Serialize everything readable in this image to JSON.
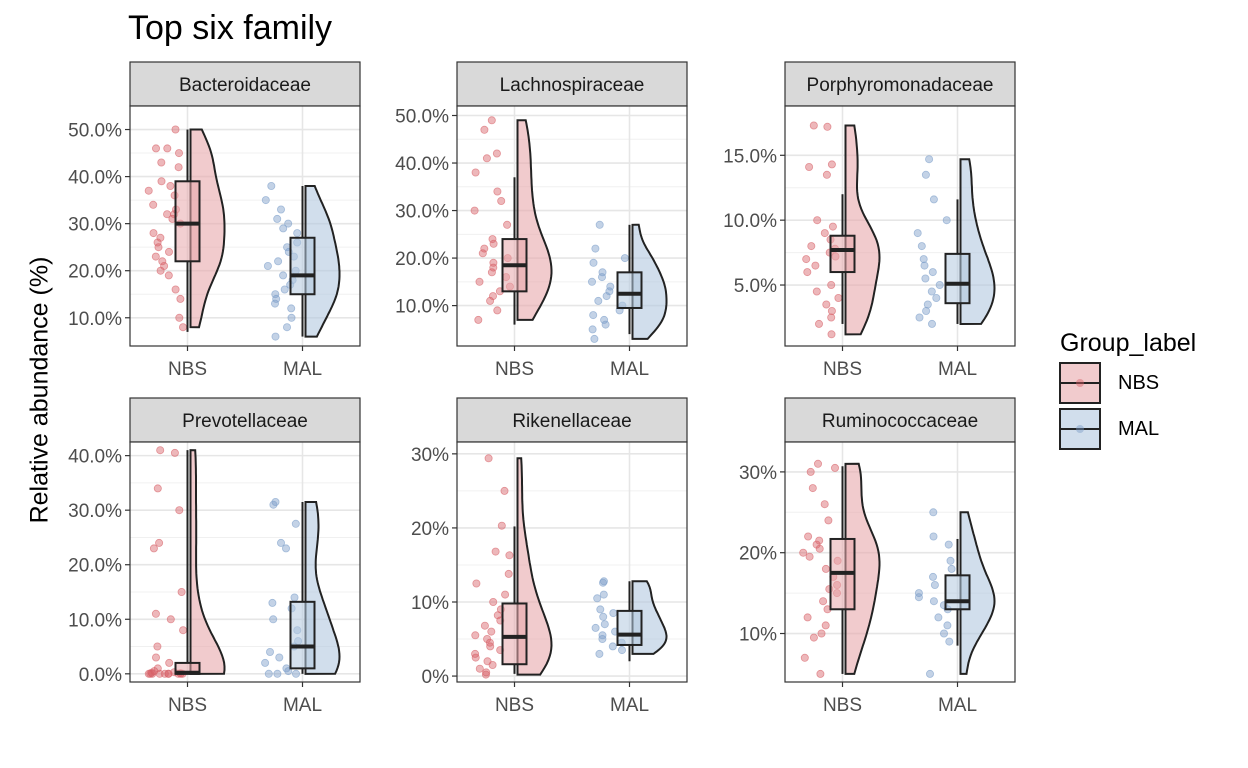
{
  "title": "Top six family",
  "ylabel": "Relative abundance (%)",
  "legend": {
    "title": "Group_label",
    "items": [
      {
        "label": "NBS",
        "fill": "#F2C6C8",
        "stroke": "#C0303A"
      },
      {
        "label": "MAL",
        "fill": "#C9D8E8",
        "stroke": "#3E6FA8"
      }
    ]
  },
  "colors": {
    "NBS_point": "#D65F66",
    "MAL_point": "#7A9CC8",
    "NBS_fill": "#E8A8AB",
    "MAL_fill": "#B3C8DF"
  },
  "chart_data": [
    {
      "type": "raincloud",
      "panel": "Bacteroidaceae",
      "categories": [
        "NBS",
        "MAL"
      ],
      "ylim": [
        4,
        55
      ],
      "yticks": [
        10,
        20,
        30,
        40,
        50
      ],
      "ytick_labels": [
        "10.0%",
        "20.0%",
        "30.0%",
        "40.0%",
        "50.0%"
      ],
      "series": [
        {
          "name": "NBS",
          "box": {
            "min": 7,
            "q1": 22,
            "median": 30,
            "q3": 39,
            "max": 50
          },
          "points": [
            46,
            46,
            45,
            50,
            43,
            42,
            38,
            39,
            37,
            36,
            34,
            33,
            32,
            32,
            31,
            30,
            28,
            27,
            26,
            25,
            24,
            23,
            22,
            21,
            20,
            19,
            16,
            14,
            10,
            8
          ]
        },
        {
          "name": "MAL",
          "box": {
            "min": 6,
            "q1": 15,
            "median": 19,
            "q3": 27,
            "max": 38
          },
          "points": [
            38,
            35,
            33,
            31,
            30,
            29,
            28,
            26,
            25,
            24,
            23,
            22,
            21,
            20,
            19,
            18,
            17,
            16,
            15,
            14,
            13,
            12,
            10,
            8,
            6
          ]
        }
      ]
    },
    {
      "type": "raincloud",
      "panel": "Lachnospiraceae",
      "categories": [
        "NBS",
        "MAL"
      ],
      "ylim": [
        1.5,
        52
      ],
      "yticks": [
        10,
        20,
        30,
        40,
        50
      ],
      "ytick_labels": [
        "10.0%",
        "20.0%",
        "30.0%",
        "40.0%",
        "50.0%"
      ],
      "series": [
        {
          "name": "NBS",
          "box": {
            "min": 6,
            "q1": 13,
            "median": 18.5,
            "q3": 24,
            "max": 37
          },
          "points": [
            47,
            42,
            41,
            49,
            38,
            34,
            32,
            30,
            27,
            24,
            23,
            22,
            21,
            20,
            19,
            18,
            17,
            16,
            15,
            14,
            13,
            12,
            11,
            9,
            7
          ]
        },
        {
          "name": "MAL",
          "box": {
            "min": 4,
            "q1": 9.5,
            "median": 12.5,
            "q3": 17,
            "max": 27
          },
          "points": [
            27,
            22,
            20,
            19,
            17,
            16,
            15,
            14,
            13,
            12,
            11,
            10,
            9,
            8,
            7,
            6,
            5,
            3
          ]
        }
      ]
    },
    {
      "type": "raincloud",
      "panel": "Porphyromonadaceae",
      "categories": [
        "NBS",
        "MAL"
      ],
      "ylim": [
        0.3,
        18.8
      ],
      "yticks": [
        5,
        10,
        15
      ],
      "ytick_labels": [
        "5.0%",
        "10.0%",
        "15.0%"
      ],
      "series": [
        {
          "name": "NBS",
          "box": {
            "min": 2,
            "q1": 6,
            "median": 7.7,
            "q3": 8.8,
            "max": 12
          },
          "points": [
            17.3,
            17.2,
            14.3,
            14.1,
            13.5,
            10,
            9.5,
            9,
            8.5,
            8,
            7.8,
            7.5,
            7.2,
            7,
            6.5,
            6,
            5,
            4.5,
            4,
            3.5,
            3,
            2.5,
            2,
            1.2
          ]
        },
        {
          "name": "MAL",
          "box": {
            "min": 2,
            "q1": 3.6,
            "median": 5.1,
            "q3": 7.4,
            "max": 11.6
          },
          "points": [
            14.7,
            13.5,
            11.6,
            10,
            9,
            8,
            7,
            6.5,
            6,
            5.5,
            5,
            4.5,
            4,
            3.5,
            3,
            2.5,
            2
          ]
        }
      ]
    },
    {
      "type": "raincloud",
      "panel": "Prevotellaceae",
      "categories": [
        "NBS",
        "MAL"
      ],
      "ylim": [
        -1.5,
        42.5
      ],
      "yticks": [
        0,
        10,
        20,
        30,
        40
      ],
      "ytick_labels": [
        "0.0%",
        "10.0%",
        "20.0%",
        "30.0%",
        "40.0%"
      ],
      "series": [
        {
          "name": "NBS",
          "box": {
            "min": 0,
            "q1": 0,
            "median": 0.2,
            "q3": 2,
            "max": 41
          },
          "points": [
            41,
            40.5,
            34,
            30,
            24,
            23,
            15,
            11,
            10,
            8,
            5,
            3,
            2,
            1,
            0.5,
            0.3,
            0.2,
            0.1,
            0,
            0,
            0,
            0,
            0,
            0,
            0,
            0,
            0,
            0
          ]
        },
        {
          "name": "MAL",
          "box": {
            "min": 0,
            "q1": 1,
            "median": 5,
            "q3": 13.2,
            "max": 31.5
          },
          "points": [
            31.5,
            31,
            27.5,
            24,
            23,
            14,
            13,
            12,
            10,
            8,
            6,
            5,
            4,
            3,
            2,
            1,
            0.5,
            0,
            0,
            0
          ]
        }
      ]
    },
    {
      "type": "raincloud",
      "panel": "Rikenellaceae",
      "categories": [
        "NBS",
        "MAL"
      ],
      "ylim": [
        -0.8,
        31.6
      ],
      "yticks": [
        0,
        10,
        20,
        30
      ],
      "ytick_labels": [
        "0%",
        "10%",
        "20%",
        "30%"
      ],
      "series": [
        {
          "name": "NBS",
          "box": {
            "min": 0.3,
            "q1": 1.6,
            "median": 5.3,
            "q3": 9.8,
            "max": 20.2
          },
          "points": [
            29.4,
            25,
            20.3,
            16.8,
            16.3,
            13.8,
            12.5,
            11,
            10,
            9,
            8.2,
            7.5,
            6.8,
            6,
            5.5,
            5,
            4.5,
            4,
            3.5,
            3,
            2.5,
            2,
            1.5,
            1,
            0.5,
            0.2
          ]
        },
        {
          "name": "MAL",
          "box": {
            "min": 2,
            "q1": 4.2,
            "median": 5.6,
            "q3": 8.8,
            "max": 12.8
          },
          "points": [
            12.8,
            12.6,
            11,
            10.5,
            9,
            8.5,
            8,
            7,
            6.5,
            6,
            5.5,
            5,
            4.5,
            4,
            3.5,
            3
          ]
        }
      ]
    },
    {
      "type": "raincloud",
      "panel": "Ruminococcaceae",
      "categories": [
        "NBS",
        "MAL"
      ],
      "ylim": [
        4,
        33.7
      ],
      "yticks": [
        10,
        20,
        30
      ],
      "ytick_labels": [
        "10%",
        "20%",
        "30%"
      ],
      "series": [
        {
          "name": "NBS",
          "box": {
            "min": 5,
            "q1": 13,
            "median": 17.5,
            "q3": 21.7,
            "max": 30.7
          },
          "points": [
            31,
            30.5,
            30,
            28,
            26,
            24,
            22,
            21.5,
            21,
            20.5,
            20,
            19.5,
            19,
            18,
            17,
            16,
            15.5,
            15,
            14,
            13,
            12,
            11,
            10,
            9.5,
            7,
            5
          ]
        },
        {
          "name": "MAL",
          "box": {
            "min": 8.5,
            "q1": 13,
            "median": 14,
            "q3": 17.2,
            "max": 21.7
          },
          "points": [
            25,
            22,
            21,
            19,
            18,
            17,
            16,
            15,
            14.5,
            14,
            13.5,
            13,
            12,
            11,
            10,
            9,
            5
          ]
        }
      ]
    }
  ]
}
